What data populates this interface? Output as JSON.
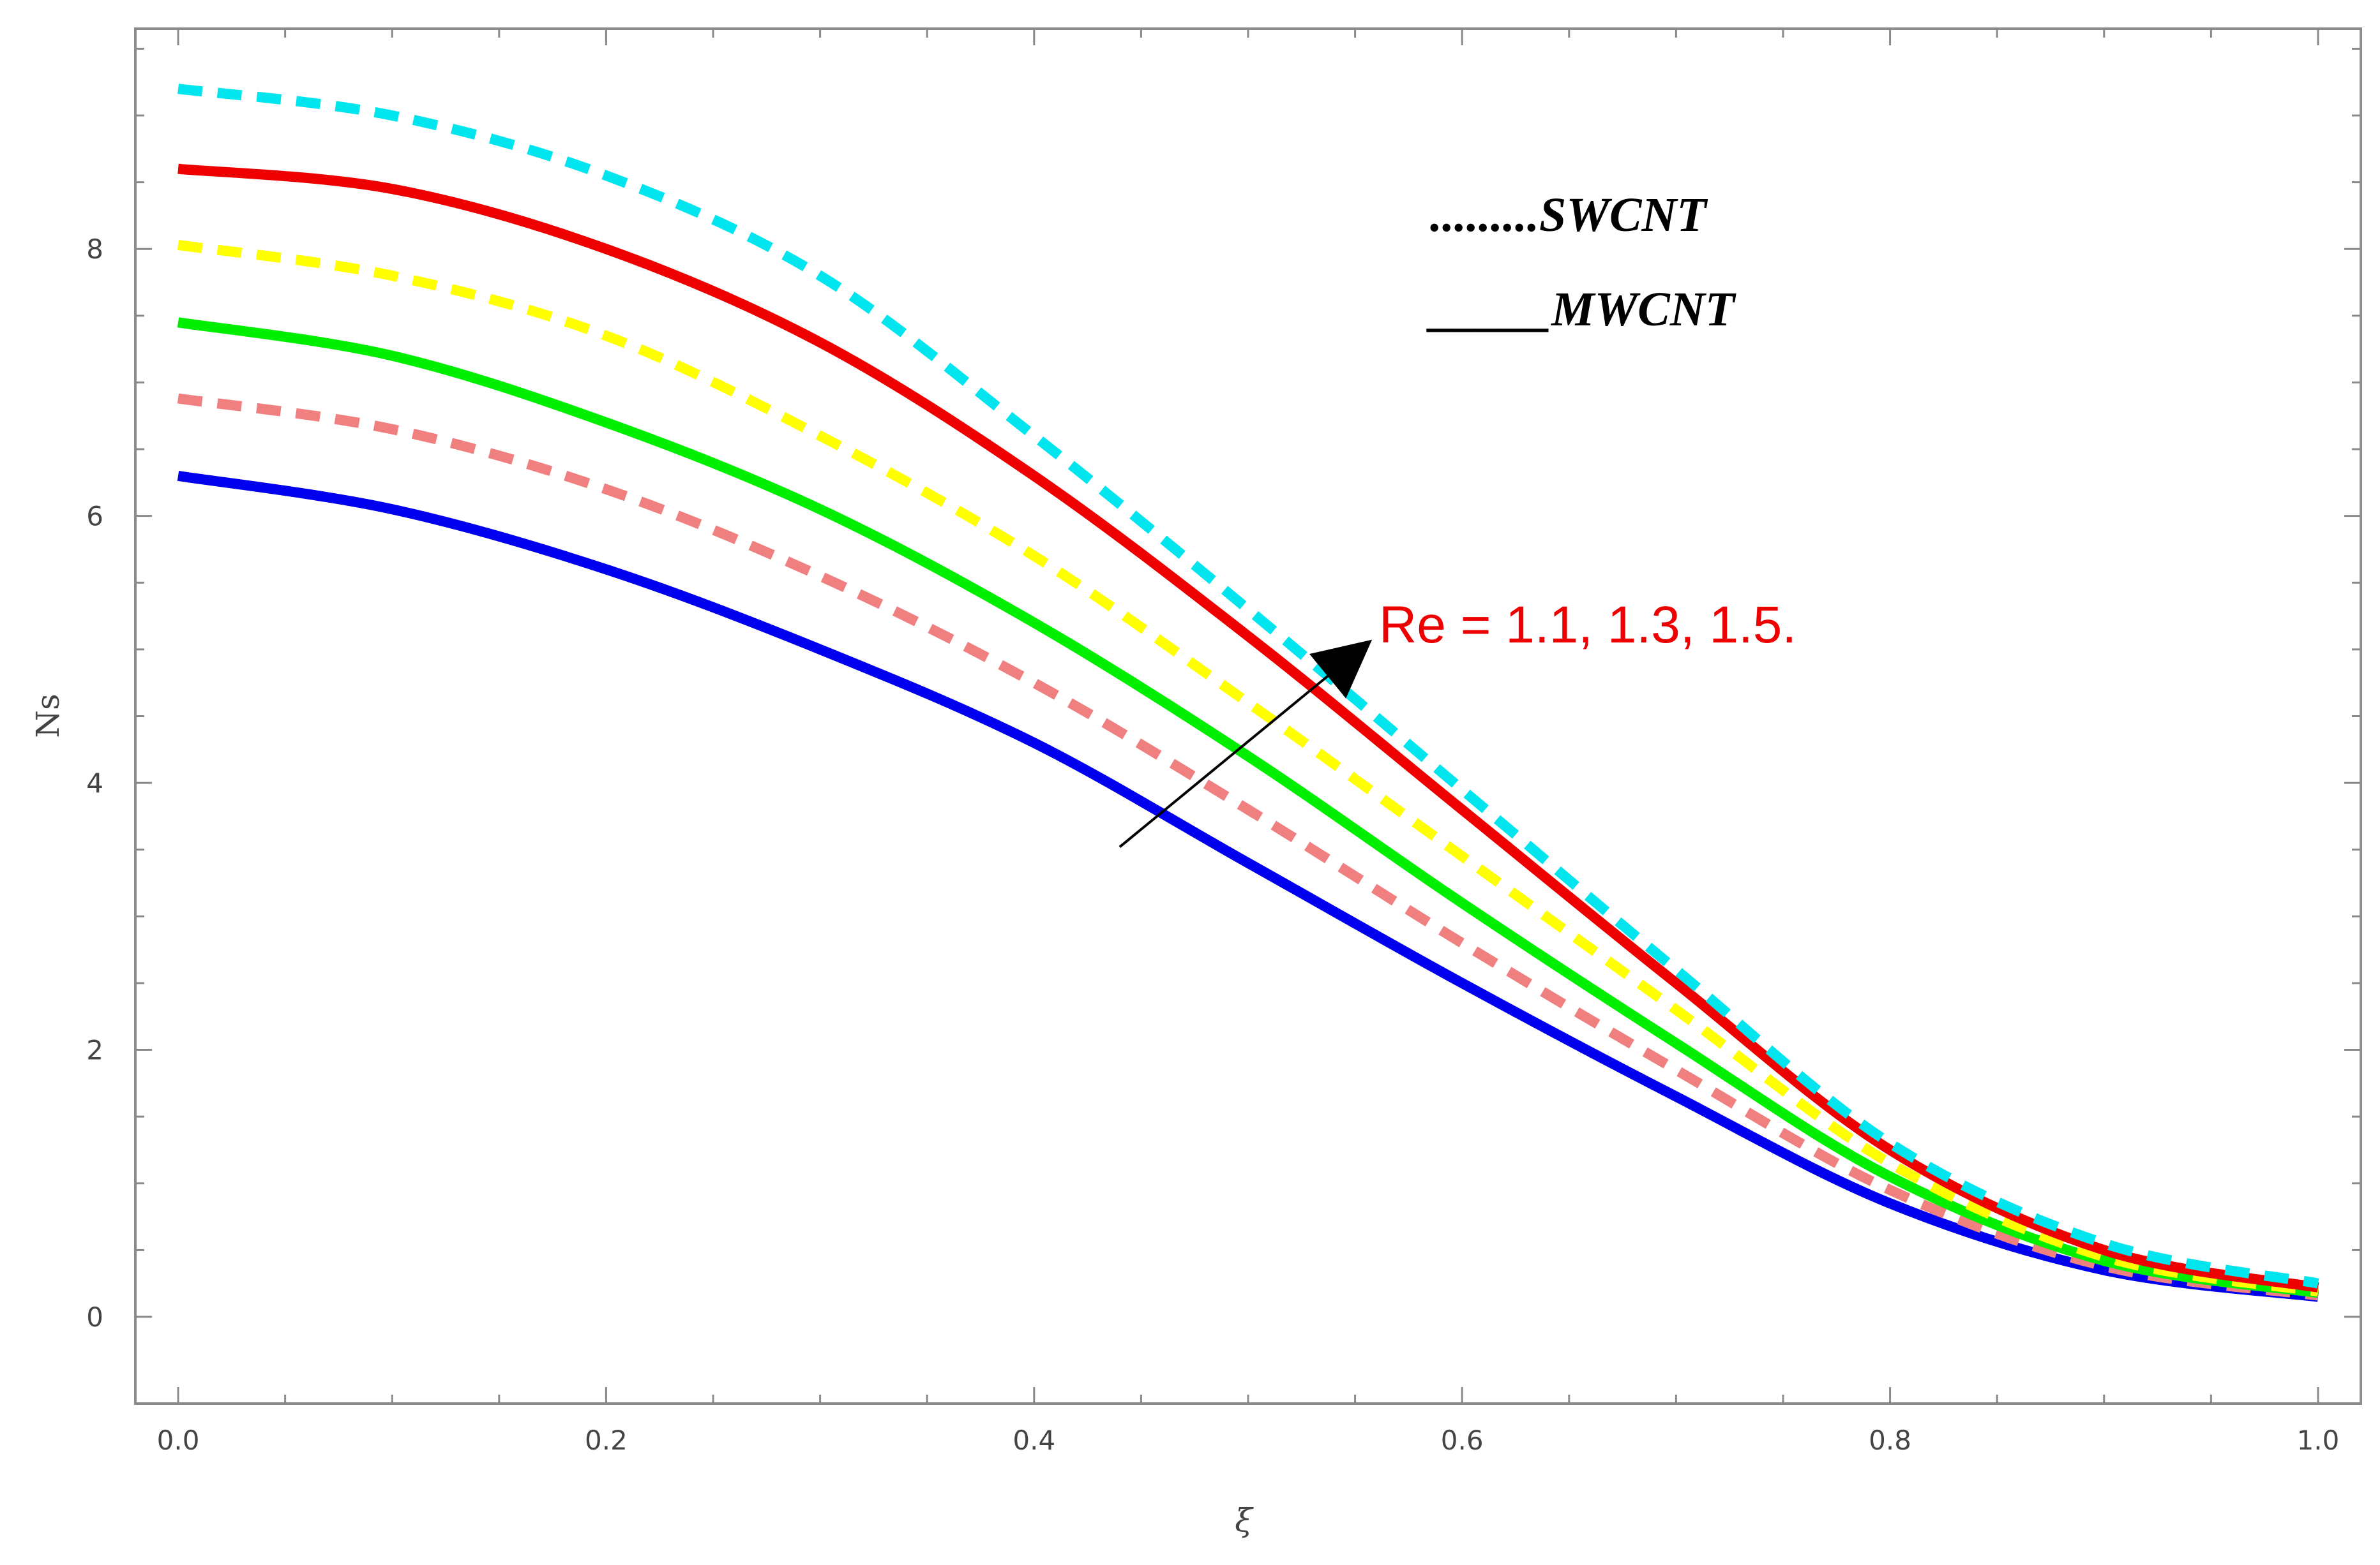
{
  "chart_data": {
    "type": "line",
    "title": "",
    "xlabel": "ξ",
    "ylabel": "Ns",
    "xlim": [
      -0.02,
      1.02
    ],
    "ylim": [
      -0.65,
      9.65
    ],
    "xticks": [
      0.0,
      0.2,
      0.4,
      0.6,
      0.8,
      1.0
    ],
    "xtick_labels": [
      "0.0",
      "0.2",
      "0.4",
      "0.6",
      "0.8",
      "1.0"
    ],
    "yticks": [
      0,
      2,
      4,
      6,
      8
    ],
    "ytick_labels": [
      "0",
      "2",
      "4",
      "6",
      "8"
    ],
    "x": [
      0.0,
      0.1,
      0.2,
      0.3,
      0.4,
      0.5,
      0.6,
      0.7,
      0.8,
      0.9,
      1.0
    ],
    "series": [
      {
        "name": "MWCNT Re = 1.1",
        "color": "#0000ee",
        "style": "solid",
        "values": [
          6.3,
          6.05,
          5.6,
          5.0,
          4.3,
          3.4,
          2.5,
          1.65,
          0.85,
          0.35,
          0.15
        ]
      },
      {
        "name": "SWCNT Re = 1.1",
        "color": "#f08080",
        "style": "dashed",
        "values": [
          6.88,
          6.65,
          6.2,
          5.55,
          4.75,
          3.8,
          2.8,
          1.85,
          0.95,
          0.38,
          0.16
        ]
      },
      {
        "name": "MWCNT Re = 1.3",
        "color": "#00ee00",
        "style": "solid",
        "values": [
          7.45,
          7.2,
          6.7,
          6.05,
          5.2,
          4.2,
          3.1,
          2.05,
          1.05,
          0.42,
          0.18
        ]
      },
      {
        "name": "SWCNT Re = 1.3",
        "color": "#ffff00",
        "style": "dashed",
        "values": [
          8.03,
          7.8,
          7.35,
          6.6,
          5.7,
          4.6,
          3.45,
          2.3,
          1.15,
          0.45,
          0.19
        ]
      },
      {
        "name": "MWCNT Re = 1.5",
        "color": "#ee0000",
        "style": "solid",
        "values": [
          8.6,
          8.45,
          8.0,
          7.3,
          6.3,
          5.1,
          3.8,
          2.5,
          1.25,
          0.5,
          0.22
        ]
      },
      {
        "name": "SWCNT Re = 1.5",
        "color": "#00e5ee",
        "style": "dashed",
        "values": [
          9.2,
          9.0,
          8.55,
          7.8,
          6.6,
          5.3,
          3.95,
          2.6,
          1.3,
          0.55,
          0.25
        ]
      }
    ],
    "legend": {
      "position": "top-right",
      "entries": [
        {
          "label": ".........SWCNT",
          "line_style": "dashed"
        },
        {
          "label": "_____MWCNT",
          "line_style": "solid"
        }
      ]
    },
    "annotation": {
      "text": "Re = 1.1, 1.3, 1.5.",
      "color": "#ee0000",
      "arrow_from": [
        0.44,
        3.52
      ],
      "arrow_to": [
        0.56,
        5.1
      ]
    },
    "grid": false
  }
}
